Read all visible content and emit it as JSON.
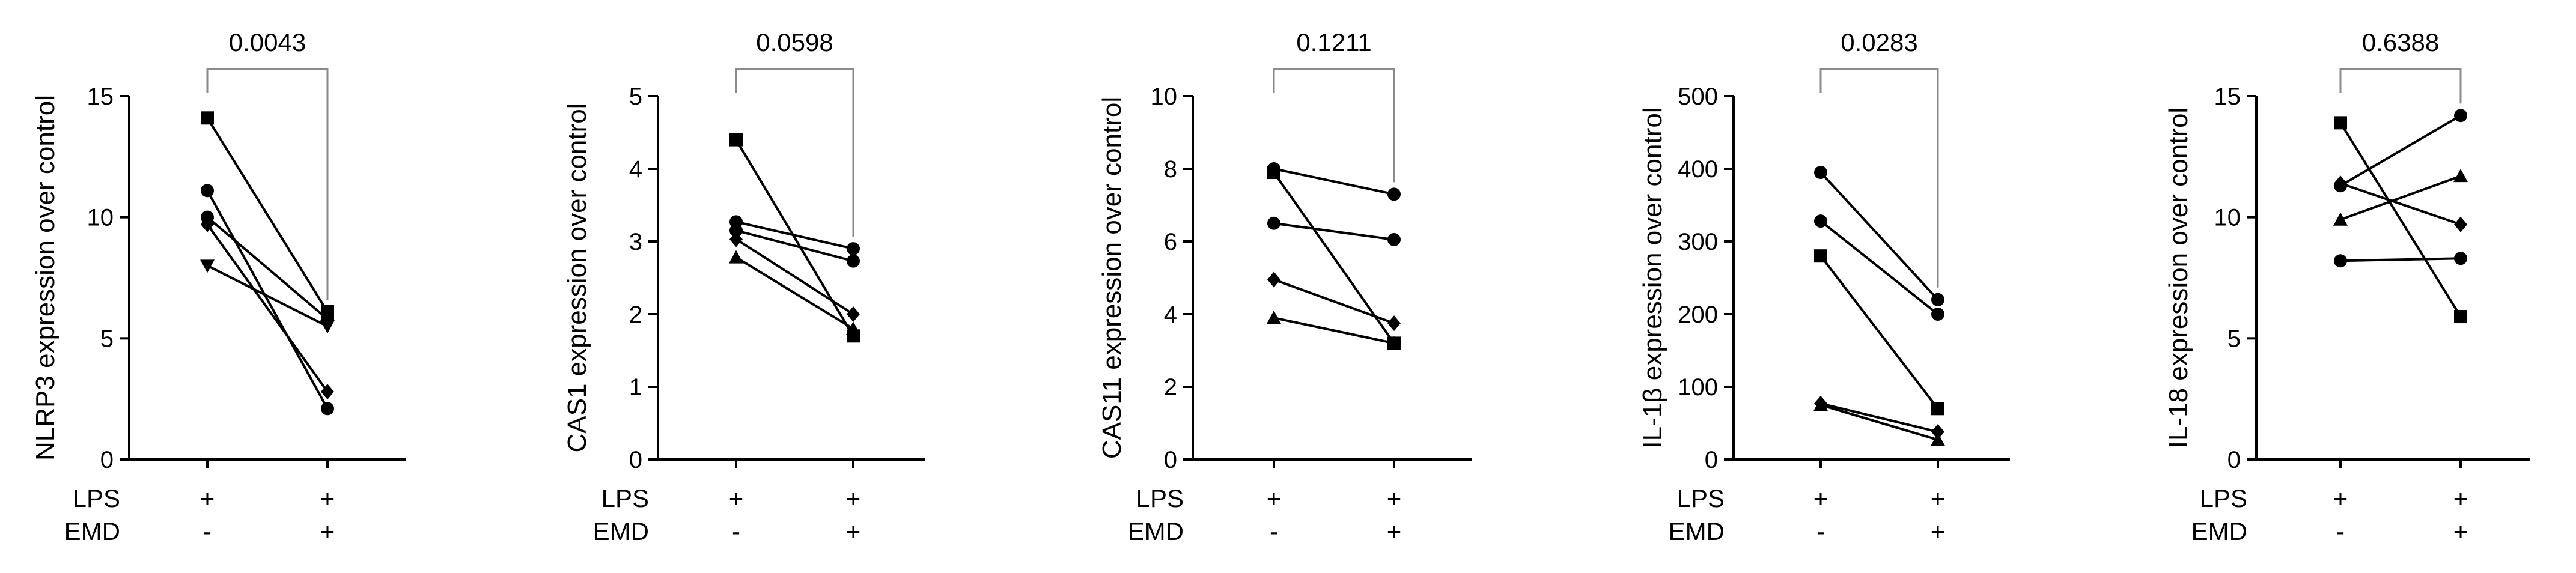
{
  "chart_data": [
    {
      "type": "line",
      "ylabel": "NLRP3 expression over control",
      "ylim": [
        0,
        15
      ],
      "yticks": [
        0,
        5,
        10,
        15
      ],
      "categories": [
        {
          "LPS": "+",
          "EMD": "-"
        },
        {
          "LPS": "+",
          "EMD": "+"
        }
      ],
      "row_labels": [
        "LPS",
        "EMD"
      ],
      "p_value": "0.0043",
      "series": [
        {
          "marker": "square",
          "values": [
            14.1,
            6.1
          ]
        },
        {
          "marker": "circle",
          "values": [
            11.1,
            2.1
          ]
        },
        {
          "marker": "circle",
          "values": [
            10.0,
            5.8
          ]
        },
        {
          "marker": "diamond",
          "values": [
            9.7,
            2.8
          ]
        },
        {
          "marker": "triangle-down",
          "values": [
            8.0,
            5.5
          ]
        }
      ]
    },
    {
      "type": "line",
      "ylabel": "CAS1 expression over control",
      "ylim": [
        0,
        5
      ],
      "yticks": [
        0,
        1,
        2,
        3,
        4,
        5
      ],
      "categories": [
        {
          "LPS": "+",
          "EMD": "-"
        },
        {
          "LPS": "+",
          "EMD": "+"
        }
      ],
      "row_labels": [
        "LPS",
        "EMD"
      ],
      "p_value": "0.0598",
      "series": [
        {
          "marker": "square",
          "values": [
            4.4,
            1.7
          ]
        },
        {
          "marker": "circle",
          "values": [
            3.27,
            2.9
          ]
        },
        {
          "marker": "circle",
          "values": [
            3.15,
            2.73
          ]
        },
        {
          "marker": "diamond",
          "values": [
            3.03,
            2.0
          ]
        },
        {
          "marker": "triangle",
          "values": [
            2.78,
            1.8
          ]
        }
      ]
    },
    {
      "type": "line",
      "ylabel": "CAS11 expression over control",
      "ylim": [
        0,
        10
      ],
      "yticks": [
        0,
        2,
        4,
        6,
        8,
        10
      ],
      "categories": [
        {
          "LPS": "+",
          "EMD": "-"
        },
        {
          "LPS": "+",
          "EMD": "+"
        }
      ],
      "row_labels": [
        "LPS",
        "EMD"
      ],
      "p_value": "0.1211",
      "series": [
        {
          "marker": "circle",
          "values": [
            8.0,
            7.3
          ]
        },
        {
          "marker": "square",
          "values": [
            7.9,
            3.2
          ]
        },
        {
          "marker": "circle",
          "values": [
            6.5,
            6.05
          ]
        },
        {
          "marker": "diamond",
          "values": [
            4.95,
            3.75
          ]
        },
        {
          "marker": "triangle",
          "values": [
            3.9,
            3.2
          ]
        }
      ]
    },
    {
      "type": "line",
      "ylabel": "IL-1β expression over control",
      "ylim": [
        0,
        500
      ],
      "yticks": [
        0,
        100,
        200,
        300,
        400,
        500
      ],
      "categories": [
        {
          "LPS": "+",
          "EMD": "-"
        },
        {
          "LPS": "+",
          "EMD": "+"
        }
      ],
      "row_labels": [
        "LPS",
        "EMD"
      ],
      "p_value": "0.0283",
      "series": [
        {
          "marker": "circle",
          "values": [
            395,
            220
          ]
        },
        {
          "marker": "circle",
          "values": [
            328,
            200
          ]
        },
        {
          "marker": "square",
          "values": [
            280,
            70
          ]
        },
        {
          "marker": "diamond",
          "values": [
            77,
            38
          ]
        },
        {
          "marker": "triangle",
          "values": [
            75,
            27
          ]
        }
      ]
    },
    {
      "type": "line",
      "ylabel": "IL-18 expression over control",
      "ylim": [
        0,
        15
      ],
      "yticks": [
        0,
        5,
        10,
        15
      ],
      "categories": [
        {
          "LPS": "+",
          "EMD": "-"
        },
        {
          "LPS": "+",
          "EMD": "+"
        }
      ],
      "row_labels": [
        "LPS",
        "EMD"
      ],
      "p_value": "0.6388",
      "series": [
        {
          "marker": "square",
          "values": [
            13.9,
            5.9
          ]
        },
        {
          "marker": "circle",
          "values": [
            11.3,
            14.2
          ]
        },
        {
          "marker": "diamond",
          "values": [
            11.4,
            9.7
          ]
        },
        {
          "marker": "triangle",
          "values": [
            9.9,
            11.7
          ]
        },
        {
          "marker": "circle",
          "values": [
            8.2,
            8.3
          ]
        }
      ]
    }
  ]
}
